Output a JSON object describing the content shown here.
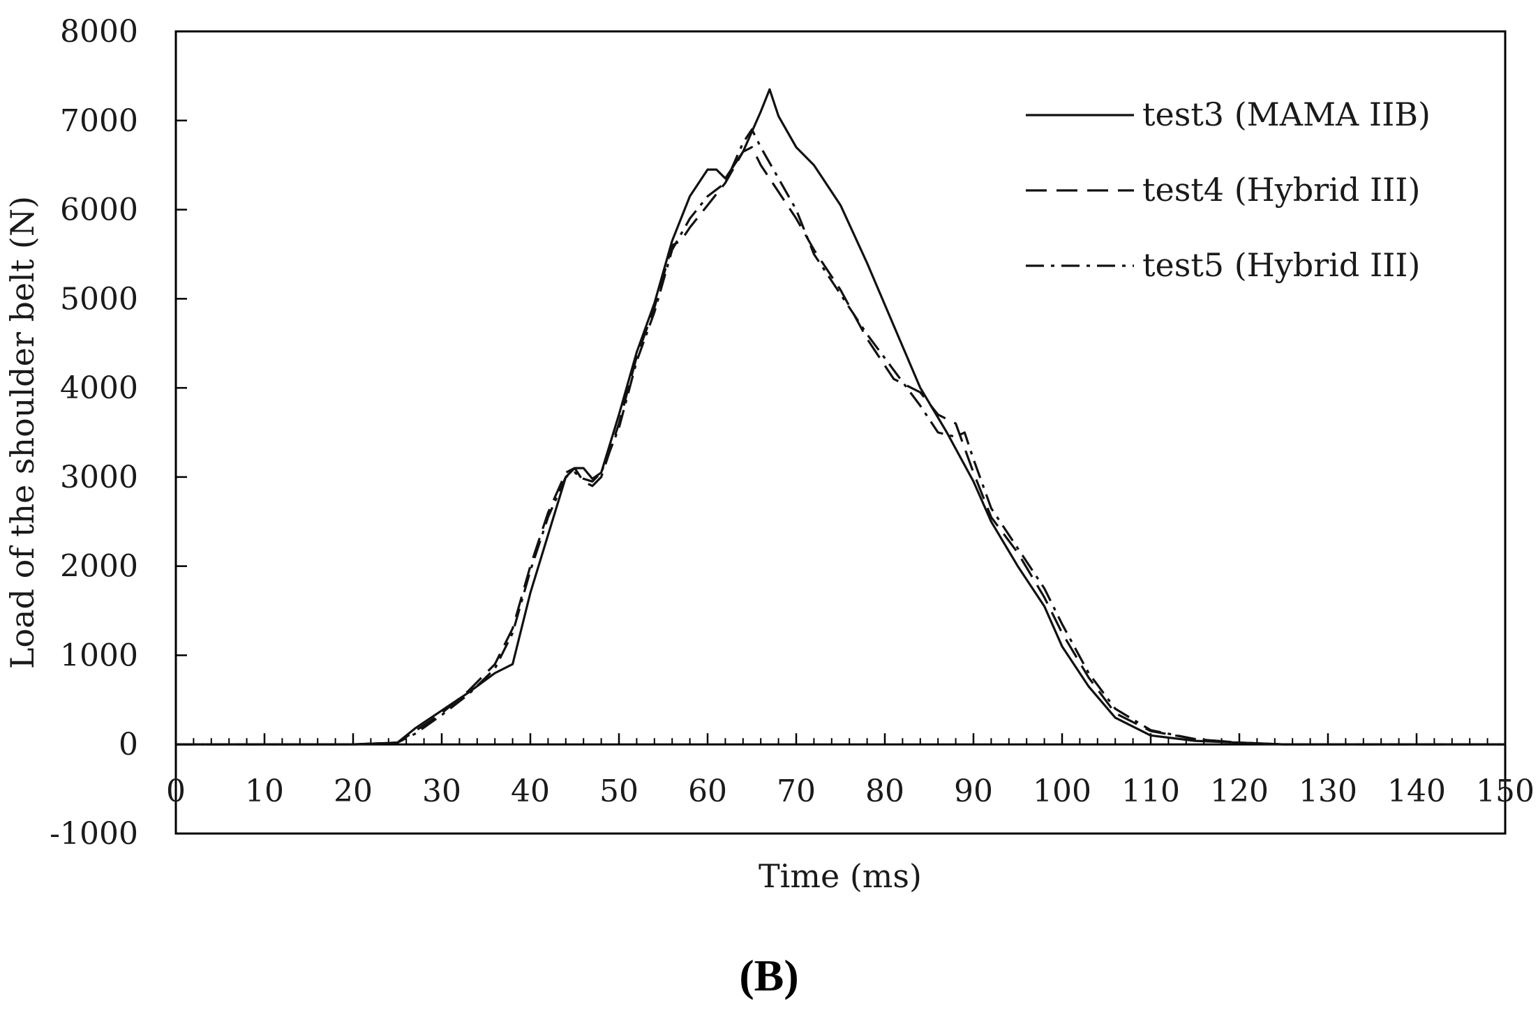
{
  "panel_label": "(B)",
  "chart_data": {
    "type": "line",
    "xlabel": "Time (ms)",
    "ylabel": "Load of the shoulder belt (N)",
    "xlim": [
      0,
      150
    ],
    "ylim": [
      -1000,
      8000
    ],
    "xticks": [
      "0",
      "10",
      "20",
      "30",
      "40",
      "50",
      "60",
      "70",
      "80",
      "90",
      "100",
      "110",
      "120",
      "130",
      "140",
      "150"
    ],
    "yticks": [
      "-1000",
      "0",
      "1000",
      "2000",
      "3000",
      "4000",
      "5000",
      "6000",
      "7000",
      "8000"
    ],
    "grid": false,
    "legend_position": "top-right",
    "series": [
      {
        "name": "test3 (MAMA IIB)",
        "style": "solid",
        "points": [
          [
            0,
            0
          ],
          [
            20,
            0
          ],
          [
            25,
            20
          ],
          [
            27,
            180
          ],
          [
            30,
            380
          ],
          [
            33,
            580
          ],
          [
            36,
            800
          ],
          [
            38,
            900
          ],
          [
            40,
            1700
          ],
          [
            42,
            2350
          ],
          [
            44,
            3000
          ],
          [
            45,
            3100
          ],
          [
            46,
            3100
          ],
          [
            47,
            2980
          ],
          [
            48,
            3050
          ],
          [
            50,
            3700
          ],
          [
            52,
            4400
          ],
          [
            54,
            4950
          ],
          [
            56,
            5650
          ],
          [
            58,
            6150
          ],
          [
            60,
            6450
          ],
          [
            61,
            6450
          ],
          [
            62,
            6350
          ],
          [
            64,
            6650
          ],
          [
            66,
            7100
          ],
          [
            67,
            7350
          ],
          [
            68,
            7050
          ],
          [
            70,
            6700
          ],
          [
            72,
            6500
          ],
          [
            75,
            6050
          ],
          [
            78,
            5400
          ],
          [
            81,
            4700
          ],
          [
            84,
            4000
          ],
          [
            87,
            3500
          ],
          [
            90,
            2950
          ],
          [
            92,
            2500
          ],
          [
            95,
            2000
          ],
          [
            98,
            1550
          ],
          [
            100,
            1100
          ],
          [
            103,
            650
          ],
          [
            106,
            300
          ],
          [
            110,
            100
          ],
          [
            115,
            40
          ],
          [
            120,
            20
          ],
          [
            125,
            0
          ],
          [
            150,
            0
          ]
        ]
      },
      {
        "name": "test4 (Hybrid III)",
        "style": "dashed",
        "points": [
          [
            0,
            0
          ],
          [
            20,
            0
          ],
          [
            25,
            20
          ],
          [
            27,
            150
          ],
          [
            30,
            350
          ],
          [
            33,
            600
          ],
          [
            36,
            900
          ],
          [
            38,
            1300
          ],
          [
            40,
            2000
          ],
          [
            42,
            2600
          ],
          [
            44,
            3050
          ],
          [
            45,
            3100
          ],
          [
            46,
            2950
          ],
          [
            47,
            2900
          ],
          [
            48,
            3000
          ],
          [
            50,
            3600
          ],
          [
            52,
            4350
          ],
          [
            54,
            4900
          ],
          [
            56,
            5600
          ],
          [
            57,
            5650
          ],
          [
            58,
            5800
          ],
          [
            60,
            6050
          ],
          [
            62,
            6300
          ],
          [
            64,
            6650
          ],
          [
            65,
            6700
          ],
          [
            66,
            6500
          ],
          [
            68,
            6200
          ],
          [
            70,
            5900
          ],
          [
            72,
            5550
          ],
          [
            75,
            5100
          ],
          [
            78,
            4550
          ],
          [
            81,
            4100
          ],
          [
            84,
            3950
          ],
          [
            86,
            3700
          ],
          [
            88,
            3600
          ],
          [
            90,
            3050
          ],
          [
            92,
            2550
          ],
          [
            95,
            2150
          ],
          [
            98,
            1650
          ],
          [
            100,
            1250
          ],
          [
            103,
            750
          ],
          [
            106,
            350
          ],
          [
            110,
            150
          ],
          [
            115,
            60
          ],
          [
            120,
            20
          ],
          [
            125,
            0
          ],
          [
            150,
            0
          ]
        ]
      },
      {
        "name": "test5 (Hybrid III)",
        "style": "dashdot",
        "points": [
          [
            0,
            0
          ],
          [
            20,
            0
          ],
          [
            25,
            20
          ],
          [
            27,
            120
          ],
          [
            30,
            330
          ],
          [
            33,
            560
          ],
          [
            36,
            850
          ],
          [
            38,
            1250
          ],
          [
            40,
            1950
          ],
          [
            42,
            2550
          ],
          [
            44,
            3000
          ],
          [
            45,
            3050
          ],
          [
            46,
            2980
          ],
          [
            47,
            2950
          ],
          [
            48,
            3050
          ],
          [
            50,
            3550
          ],
          [
            52,
            4300
          ],
          [
            54,
            4850
          ],
          [
            56,
            5550
          ],
          [
            58,
            5900
          ],
          [
            60,
            6150
          ],
          [
            62,
            6300
          ],
          [
            64,
            6750
          ],
          [
            65,
            6900
          ],
          [
            66,
            6700
          ],
          [
            68,
            6350
          ],
          [
            70,
            6000
          ],
          [
            72,
            5500
          ],
          [
            75,
            5050
          ],
          [
            78,
            4600
          ],
          [
            81,
            4200
          ],
          [
            84,
            3800
          ],
          [
            86,
            3500
          ],
          [
            88,
            3450
          ],
          [
            89,
            3500
          ],
          [
            90,
            3200
          ],
          [
            92,
            2650
          ],
          [
            95,
            2200
          ],
          [
            98,
            1750
          ],
          [
            100,
            1350
          ],
          [
            103,
            800
          ],
          [
            106,
            400
          ],
          [
            110,
            160
          ],
          [
            115,
            60
          ],
          [
            120,
            20
          ],
          [
            125,
            0
          ],
          [
            150,
            0
          ]
        ]
      }
    ]
  }
}
